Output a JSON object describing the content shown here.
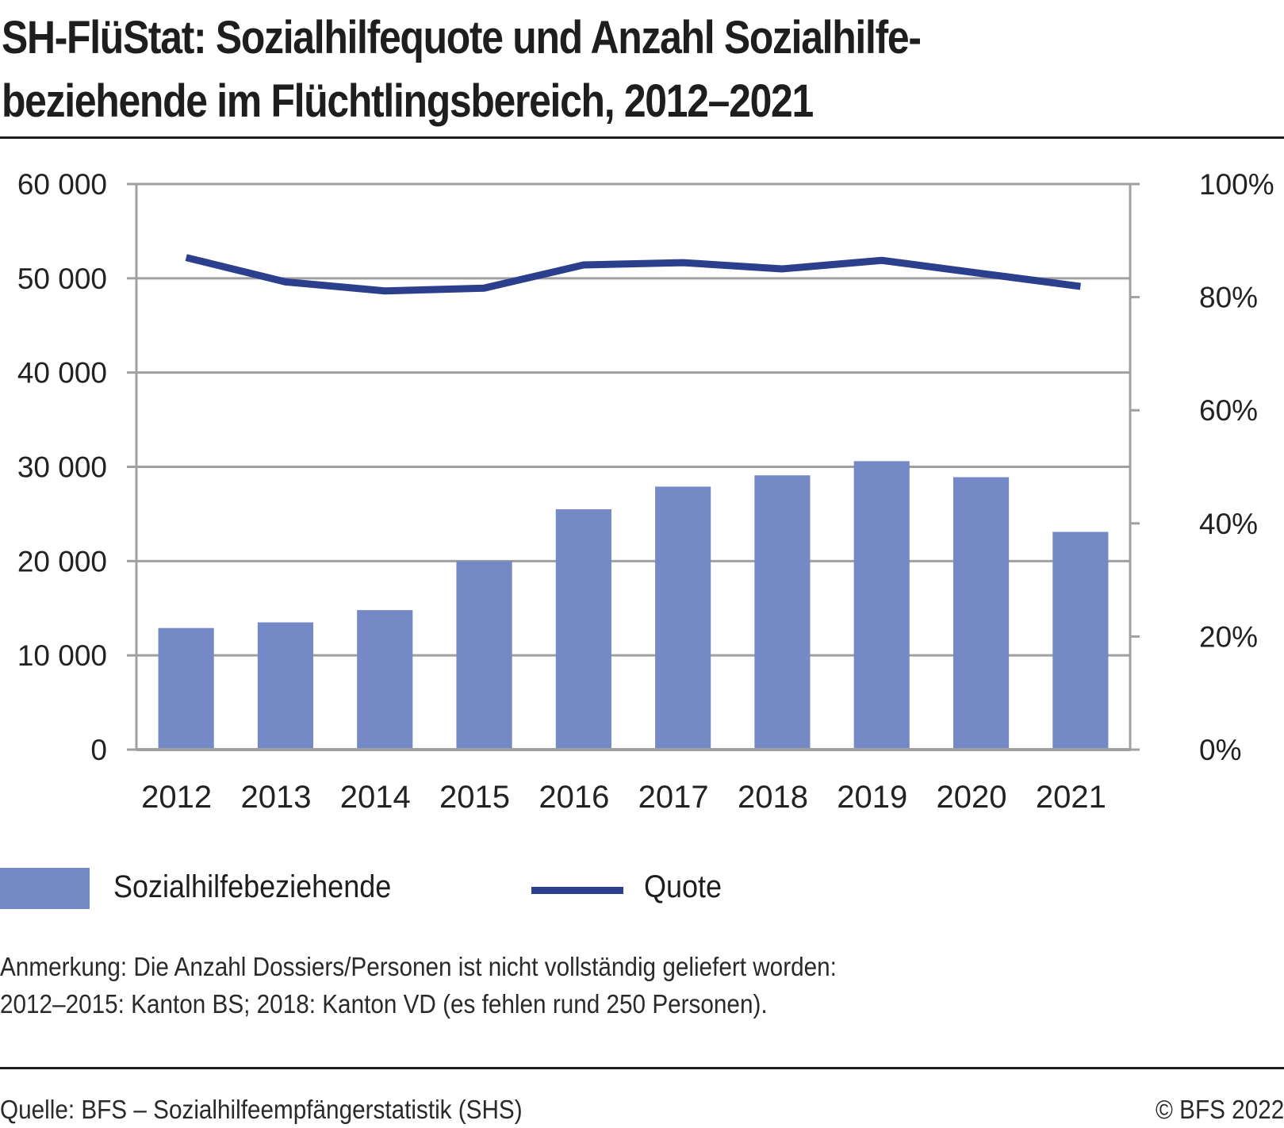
{
  "header": {
    "title_line1": "SH-FlüStat: Sozialhilfequote und Anzahl Sozialhilfe-",
    "title_line2": "beziehende im Flüchtlingsbereich, 2012–2021"
  },
  "legend": {
    "bar_label": "Sozialhilfebeziehende",
    "line_label": "Quote"
  },
  "notes": {
    "line1": "Anmerkung: Die Anzahl Dossiers/Personen ist nicht vollständig geliefert worden:",
    "line2": "2012–2015: Kanton BS; 2018: Kanton VD (es fehlen rund 250 Personen)."
  },
  "footer": {
    "source": "Quelle: BFS – Sozialhilfeempfängerstatistik (SHS)",
    "copyright": "© BFS 2022"
  },
  "colors": {
    "bar": "#7489c6",
    "line": "#2b3f8d",
    "grid": "#a0a0a0"
  },
  "chart_data": {
    "type": "bar",
    "title": "SH-FlüStat: Sozialhilfequote und Anzahl Sozialhilfebeziehende im Flüchtlingsbereich, 2012–2021",
    "categories": [
      "2012",
      "2013",
      "2014",
      "2015",
      "2016",
      "2017",
      "2018",
      "2019",
      "2020",
      "2021"
    ],
    "series": [
      {
        "name": "Sozialhilfebeziehende",
        "type": "bar",
        "axis": "left",
        "values": [
          12900,
          13500,
          14800,
          20000,
          25500,
          27900,
          29100,
          30600,
          28900,
          23100
        ]
      },
      {
        "name": "Quote",
        "type": "line",
        "axis": "right",
        "unit": "%",
        "values": [
          87.0,
          82.7,
          81.1,
          81.6,
          85.7,
          86.1,
          85.0,
          86.5,
          84.2,
          81.9
        ]
      }
    ],
    "y_left": {
      "ylim": [
        0,
        60000
      ],
      "ticks": [
        0,
        10000,
        20000,
        30000,
        40000,
        50000,
        60000
      ],
      "tick_labels": [
        "0",
        "10 000",
        "20 000",
        "30 000",
        "40 000",
        "50 000",
        "60 000"
      ]
    },
    "y_right": {
      "ylim": [
        0,
        100
      ],
      "ticks": [
        0,
        20,
        40,
        60,
        80,
        100
      ],
      "tick_labels": [
        "0%",
        "20%",
        "40%",
        "60%",
        "80%",
        "100%"
      ]
    },
    "xlabel": "",
    "ylabel": "",
    "grid": true,
    "legend_position": "bottom-left"
  }
}
